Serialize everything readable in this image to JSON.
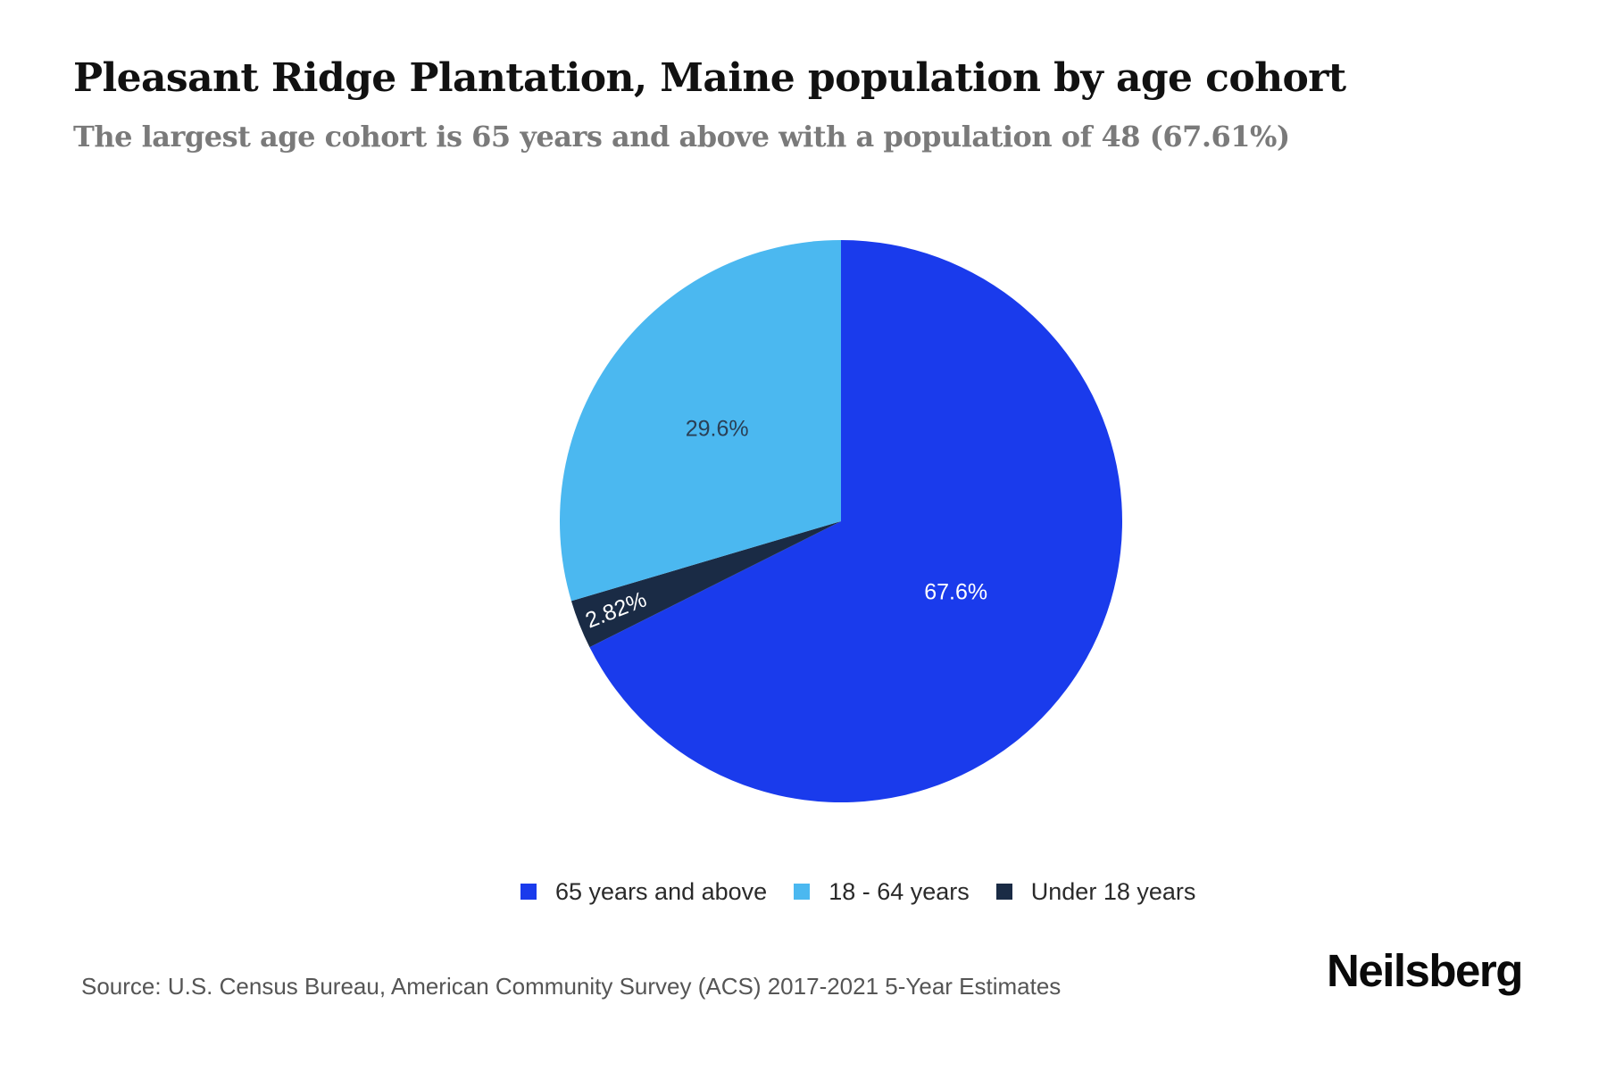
{
  "header": {
    "title": "Pleasant Ridge Plantation, Maine population by age cohort",
    "subtitle": "The largest age cohort is 65 years and above with a population of 48 (67.61%)"
  },
  "chart_data": {
    "type": "pie",
    "title": "Pleasant Ridge Plantation, Maine population by age cohort",
    "subtitle": "The largest age cohort is 65 years and above with a population of 48 (67.61%)",
    "categories": [
      "65 years and above",
      "Under 18 years",
      "18 - 64 years"
    ],
    "values": [
      67.61,
      2.82,
      29.58
    ],
    "labels": [
      "67.6%",
      "2.82%",
      "29.6%"
    ],
    "colors": [
      "#1a3bec",
      "#1a2b45",
      "#4bb8f0"
    ],
    "label_colors": [
      "#ffffff",
      "#ffffff",
      "#2a3f55"
    ],
    "start_angle_deg": 0,
    "direction": "clockwise",
    "legend_position": "bottom",
    "annotations": [
      "largest cohort population: 48"
    ]
  },
  "legend": {
    "items": [
      {
        "label": "65 years and above",
        "color": "#1a3bec"
      },
      {
        "label": "18 - 64 years",
        "color": "#4bb8f0"
      },
      {
        "label": "Under 18 years",
        "color": "#1a2b45"
      }
    ]
  },
  "footer": {
    "source": "Source: U.S. Census Bureau, American Community Survey (ACS) 2017-2021 5-Year Estimates",
    "brand": "Neilsberg"
  }
}
